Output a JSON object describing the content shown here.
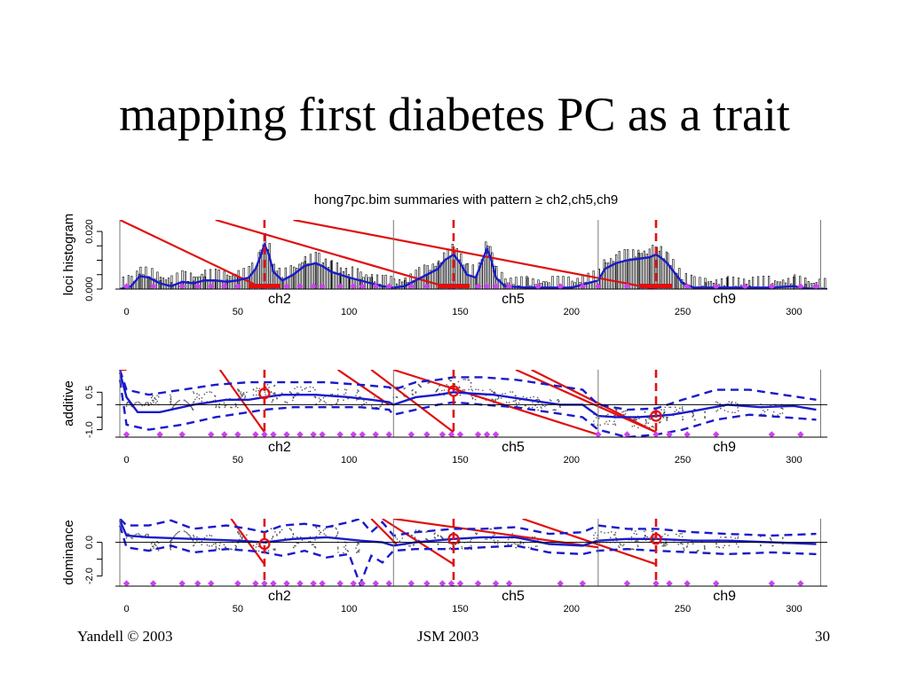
{
  "slide": {
    "title": "mapping first diabetes PC as a trait",
    "footer_left": "Yandell © 2003",
    "footer_center": "JSM 2003",
    "footer_right": "30"
  },
  "chart_data": {
    "type": "line",
    "title": "hong7pc.bim summaries with pattern ≥ ch2,ch5,ch9",
    "colors": {
      "line": "#1a1acc",
      "marker": "#e01010",
      "diamond": "#cc44ee",
      "points": "#555555"
    },
    "x_axis": {
      "ticks": [
        0,
        50,
        100,
        150,
        200,
        250,
        300
      ],
      "xlim": [
        -5,
        315
      ]
    },
    "chromosomes": [
      {
        "name": "ch2",
        "start": -3,
        "end": 120,
        "label_x": 60,
        "qtl": 62
      },
      {
        "name": "ch5",
        "start": 120,
        "end": 212,
        "label_x": 165,
        "qtl": 147
      },
      {
        "name": "ch9",
        "start": 212,
        "end": 315,
        "label_x": 260,
        "qtl": 238
      }
    ],
    "panels": [
      {
        "ylabel": "loci histogram",
        "yticks": [
          0.0,
          0.005,
          0.01,
          0.015,
          0.02
        ],
        "ytick_labels": [
          "0.000",
          "",
          "",
          "",
          "0.020"
        ],
        "ylim": [
          0,
          0.024
        ],
        "curve_x": [
          -3,
          2,
          6,
          10,
          15,
          20,
          25,
          30,
          35,
          40,
          45,
          50,
          55,
          58,
          60,
          62,
          64,
          66,
          70,
          75,
          80,
          85,
          88,
          92,
          96,
          100,
          105,
          110,
          115,
          120,
          125,
          130,
          135,
          140,
          143,
          145,
          147,
          150,
          153,
          157,
          160,
          162,
          164,
          166,
          170,
          180,
          190,
          200,
          212,
          215,
          220,
          225,
          230,
          235,
          238,
          240,
          243,
          247,
          250,
          255,
          260,
          270,
          280,
          290,
          300,
          305,
          310,
          315
        ],
        "curve_y": [
          0.0,
          0.001,
          0.0045,
          0.004,
          0.002,
          0.001,
          0.0025,
          0.002,
          0.003,
          0.003,
          0.0025,
          0.003,
          0.004,
          0.007,
          0.011,
          0.0155,
          0.012,
          0.006,
          0.003,
          0.005,
          0.008,
          0.009,
          0.008,
          0.006,
          0.005,
          0.004,
          0.003,
          0.002,
          0.001,
          0.0005,
          0.001,
          0.003,
          0.005,
          0.007,
          0.01,
          0.011,
          0.012,
          0.009,
          0.005,
          0.004,
          0.01,
          0.014,
          0.01,
          0.004,
          0.001,
          0.0005,
          0.0005,
          0.0005,
          0.003,
          0.007,
          0.009,
          0.01,
          0.0105,
          0.011,
          0.012,
          0.011,
          0.009,
          0.005,
          0.002,
          0.0005,
          0.0005,
          0.0005,
          0.0005,
          0.0005,
          0.001,
          0.0003,
          0.0,
          0.0
        ],
        "markers": [
          0,
          12,
          25,
          32,
          38,
          44,
          50,
          58,
          62,
          66,
          72,
          78,
          84,
          88,
          96,
          102,
          106,
          112,
          118,
          128,
          135,
          142,
          146,
          150,
          158,
          162,
          166,
          172,
          185,
          195,
          205,
          212,
          225,
          232,
          238,
          244,
          252,
          265,
          278,
          290,
          303,
          310
        ],
        "lines": [
          {
            "from": [
              -3,
              0.024
            ],
            "to": [
              62,
              0.0
            ]
          },
          {
            "from": [
              40,
              0.024
            ],
            "to": [
              147,
              0.0
            ]
          },
          {
            "from": [
              75,
              0.024
            ],
            "to": [
              238,
              0.0
            ]
          }
        ]
      },
      {
        "ylabel": "additive",
        "yticks": [
          -1.0,
          -0.5,
          0.0,
          0.5
        ],
        "ytick_labels": [
          "-1.0",
          "",
          "",
          "0.5"
        ],
        "ylim": [
          -1.3,
          1.4
        ],
        "hline": 0,
        "curve_x": [
          -3,
          0,
          5,
          15,
          30,
          45,
          55,
          62,
          70,
          85,
          100,
          110,
          118,
          120,
          130,
          140,
          147,
          155,
          165,
          180,
          195,
          205,
          212,
          220,
          230,
          238,
          245,
          255,
          270,
          285,
          300,
          310
        ],
        "curve_y": [
          1.3,
          0.3,
          -0.3,
          -0.3,
          0.0,
          0.2,
          0.2,
          0.3,
          0.4,
          0.4,
          0.3,
          0.2,
          0.1,
          0.0,
          0.3,
          0.4,
          0.5,
          0.45,
          0.4,
          0.2,
          0.0,
          0.0,
          -0.45,
          -0.5,
          -0.5,
          -0.45,
          -0.4,
          -0.25,
          0.0,
          -0.1,
          -0.05,
          -0.2
        ],
        "upper_x": [
          -3,
          0,
          10,
          25,
          40,
          55,
          62,
          75,
          90,
          105,
          118,
          120,
          130,
          140,
          147,
          160,
          175,
          190,
          205,
          212,
          225,
          238,
          250,
          265,
          280,
          295,
          310
        ],
        "upper_y": [
          1.4,
          0.6,
          0.4,
          0.6,
          0.8,
          0.9,
          0.9,
          0.9,
          0.9,
          0.8,
          0.7,
          0.6,
          0.9,
          1.0,
          1.1,
          1.1,
          1.0,
          0.8,
          0.6,
          0.0,
          -0.2,
          -0.15,
          0.2,
          0.6,
          0.6,
          0.4,
          0.2
        ],
        "lower_x": [
          -3,
          0,
          10,
          25,
          40,
          55,
          62,
          75,
          90,
          105,
          118,
          120,
          130,
          140,
          147,
          160,
          175,
          190,
          205,
          212,
          225,
          238,
          250,
          265,
          280,
          295,
          310
        ],
        "lower_y": [
          1.0,
          -0.8,
          -1.0,
          -0.8,
          -0.5,
          -0.3,
          -0.2,
          -0.1,
          -0.1,
          -0.1,
          -0.2,
          -0.4,
          -0.2,
          0.0,
          0.1,
          0.0,
          -0.1,
          -0.3,
          -0.5,
          -1.0,
          -1.3,
          -1.2,
          -1.0,
          -0.6,
          -0.4,
          -0.5,
          -0.6
        ],
        "points_x": [
          5,
          15,
          25,
          35,
          45,
          55,
          62,
          70,
          80,
          90,
          100,
          110,
          125,
          135,
          145,
          150,
          160,
          170,
          180,
          190,
          215,
          225,
          232,
          238,
          245,
          255,
          270,
          290
        ],
        "points_y": [
          -0.1,
          0.2,
          0.0,
          0.3,
          0.1,
          0.4,
          0.6,
          0.3,
          0.5,
          0.2,
          0.4,
          0.1,
          0.5,
          0.7,
          0.6,
          0.8,
          0.4,
          0.3,
          0.1,
          0.0,
          -0.6,
          -0.4,
          -0.7,
          -0.5,
          -0.3,
          -0.4,
          -0.1,
          -0.2
        ],
        "qtl_y": [
          0.45,
          0.55,
          -0.45
        ],
        "markers": [
          0,
          15,
          25,
          38,
          44,
          50,
          58,
          62,
          66,
          72,
          78,
          84,
          88,
          96,
          102,
          106,
          112,
          118,
          128,
          135,
          142,
          146,
          150,
          158,
          162,
          166,
          212,
          225,
          238,
          244,
          252,
          265,
          290,
          303
        ],
        "lines": [
          {
            "from": [
              -3,
              1.4
            ],
            "to": [
              0,
              1.4
            ]
          },
          {
            "from": [
              42,
              1.4
            ],
            "to": [
              62,
              -1.1
            ]
          },
          {
            "from": [
              95,
              1.4
            ],
            "to": [
              118,
              0.0
            ]
          },
          {
            "from": [
              110,
              1.4
            ],
            "to": [
              147,
              -1.1
            ]
          },
          {
            "from": [
              120,
              1.4
            ],
            "to": [
              212,
              -1.2
            ]
          },
          {
            "from": [
              175,
              1.4
            ],
            "to": [
              238,
              -1.1
            ]
          },
          {
            "from": [
              182,
              1.4
            ],
            "to": [
              238,
              -1.1
            ]
          }
        ]
      },
      {
        "ylabel": "dominance",
        "yticks": [
          -2.0,
          -1.0,
          0.0
        ],
        "ytick_labels": [
          "-2.0",
          "",
          "0.0"
        ],
        "ylim": [
          -2.6,
          1.4
        ],
        "hline": 0,
        "curve_x": [
          -3,
          0,
          10,
          30,
          50,
          62,
          75,
          90,
          105,
          115,
          120,
          130,
          147,
          160,
          175,
          190,
          205,
          212,
          225,
          238,
          255,
          270,
          290,
          310
        ],
        "curve_y": [
          1.3,
          0.4,
          0.3,
          0.2,
          0.1,
          0.0,
          0.2,
          0.3,
          0.1,
          0.0,
          -0.2,
          0.0,
          0.2,
          0.3,
          0.3,
          -0.1,
          -0.2,
          0.1,
          0.2,
          0.2,
          0.1,
          0.1,
          0.0,
          -0.1
        ],
        "upper_x": [
          -3,
          0,
          10,
          20,
          30,
          45,
          55,
          62,
          70,
          80,
          90,
          100,
          105,
          110,
          115,
          120,
          130,
          147,
          160,
          175,
          190,
          205,
          212,
          225,
          238,
          255,
          270,
          290,
          310
        ],
        "upper_y": [
          1.4,
          1.0,
          1.0,
          1.3,
          0.8,
          1.0,
          0.8,
          0.6,
          1.0,
          1.1,
          0.9,
          1.2,
          1.4,
          0.6,
          1.2,
          0.4,
          0.6,
          0.8,
          0.8,
          0.9,
          0.5,
          0.6,
          1.0,
          0.8,
          0.8,
          0.6,
          0.5,
          0.4,
          0.5
        ],
        "lower_x": [
          -3,
          0,
          10,
          20,
          30,
          45,
          55,
          62,
          70,
          80,
          90,
          100,
          105,
          110,
          115,
          120,
          130,
          147,
          160,
          175,
          190,
          205,
          212,
          225,
          238,
          255,
          270,
          290,
          310
        ],
        "lower_y": [
          1.0,
          -0.3,
          -0.5,
          -0.2,
          -0.6,
          -0.4,
          -0.5,
          -0.6,
          -0.8,
          -0.5,
          -0.9,
          -0.7,
          -2.5,
          -0.8,
          -1.2,
          -0.5,
          -0.4,
          -0.4,
          -0.3,
          -0.2,
          -0.6,
          -0.7,
          -0.5,
          -0.4,
          -0.5,
          -0.6,
          -0.7,
          -0.6,
          -0.7
        ],
        "points_x": [
          5,
          15,
          25,
          35,
          45,
          55,
          62,
          70,
          80,
          90,
          100,
          125,
          135,
          145,
          150,
          160,
          170,
          180,
          215,
          225,
          232,
          238,
          245,
          255,
          270,
          290
        ],
        "points_y": [
          0.2,
          -0.2,
          0.4,
          0.1,
          -0.1,
          0.3,
          -0.2,
          0.5,
          0.0,
          0.6,
          -0.3,
          0.1,
          0.4,
          0.2,
          -0.1,
          0.5,
          0.2,
          0.0,
          0.3,
          -0.1,
          0.4,
          0.1,
          0.2,
          -0.2,
          0.0,
          0.1
        ],
        "qtl_y": [
          -0.1,
          0.2,
          0.2
        ],
        "markers": [
          0,
          12,
          25,
          32,
          38,
          50,
          58,
          62,
          66,
          72,
          78,
          84,
          88,
          96,
          102,
          106,
          112,
          118,
          128,
          135,
          142,
          146,
          150,
          158,
          166,
          172,
          195,
          205,
          225,
          238,
          244,
          252,
          265,
          290,
          303
        ],
        "lines": [
          {
            "from": [
              47,
              1.4
            ],
            "to": [
              62,
              -1.3
            ]
          },
          {
            "from": [
              110,
              1.4
            ],
            "to": [
              122,
              -0.2
            ]
          },
          {
            "from": [
              115,
              1.4
            ],
            "to": [
              147,
              -1.3
            ]
          },
          {
            "from": [
              120,
              1.4
            ],
            "to": [
              212,
              -0.3
            ]
          },
          {
            "from": [
              178,
              1.4
            ],
            "to": [
              238,
              -1.3
            ]
          }
        ]
      }
    ]
  }
}
